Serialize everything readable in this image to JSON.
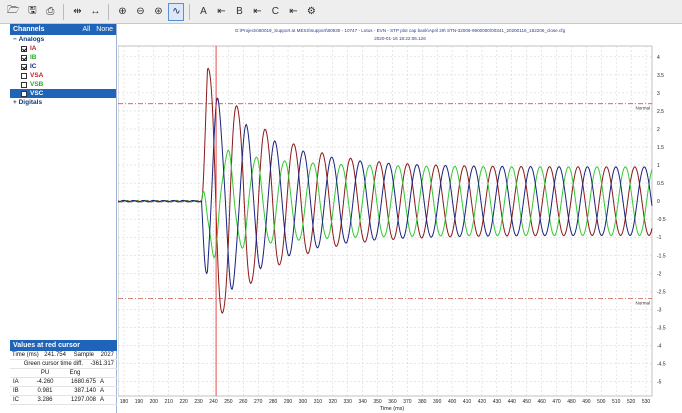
{
  "toolbar": {
    "buttons": [
      {
        "name": "open-icon",
        "glyph": "🗁"
      },
      {
        "name": "save-icon",
        "glyph": "🖫"
      },
      {
        "name": "print-icon",
        "glyph": "⎙"
      },
      {
        "name": "cursor-icon",
        "glyph": "⇹"
      },
      {
        "name": "arrows-icon",
        "glyph": "↔"
      },
      {
        "name": "zoom-in-icon",
        "glyph": "⊕"
      },
      {
        "name": "zoom-out-icon",
        "glyph": "⊖"
      },
      {
        "name": "zoom-fit-icon",
        "glyph": "⊛"
      },
      {
        "name": "waveform-icon",
        "glyph": "∿"
      }
    ],
    "cursor_a": "A",
    "cursor_b": "B",
    "cursor_c": "C"
  },
  "sidebar": {
    "channels_title": "Channels",
    "all_label": "All",
    "none_label": "None",
    "analogs_label": "Analogs",
    "channels": [
      {
        "label": "IA",
        "color": "#c81e1e",
        "checked": true
      },
      {
        "label": "IB",
        "color": "#2aa82a",
        "checked": true
      },
      {
        "label": "IC",
        "color": "#1a2f8c",
        "checked": true
      },
      {
        "label": "VSA",
        "color": "#c81e1e",
        "checked": false
      },
      {
        "label": "VSB",
        "color": "#2aa82a",
        "checked": false
      },
      {
        "label": "VSC",
        "color": "#ffffff",
        "checked": false
      }
    ],
    "digitals_label": "Digitals"
  },
  "values": {
    "title": "Values at red cursor",
    "time_label": "Time (ms)",
    "time_value": "241.754",
    "sample_label": "Sample",
    "sample_value": "2027",
    "diff_label": "Green cursor time diff.",
    "diff_value": "-361.317",
    "col_pu": "PU",
    "col_eng": "Eng",
    "rows": [
      {
        "name": "IA",
        "pu": "-4.260",
        "eng": "1680.675",
        "unit": "A"
      },
      {
        "name": "IB",
        "pu": "0.981",
        "eng": "387.140",
        "unit": "A"
      },
      {
        "name": "IC",
        "pu": "3.286",
        "eng": "1297.008",
        "unit": "A"
      }
    ]
  },
  "chart_data": {
    "type": "line",
    "title": "G:\\Projects\\80019_Support at MESS\\support\\80930 - 10747 - Lotus - EVN - STP plot cap bank\\April 29\\ STN-32006-9900000\\00341_20200116_182206_close.cfg",
    "subtitle": "2020-01-16 18:22:06.126",
    "xlabel": "Time (ms)",
    "ylabel": "",
    "xlim": [
      176,
      534
    ],
    "ylim": [
      -5.4,
      4.3
    ],
    "x_ticks": [
      180,
      190,
      200,
      210,
      220,
      230,
      240,
      250,
      260,
      270,
      280,
      290,
      300,
      310,
      320,
      330,
      340,
      350,
      360,
      370,
      380,
      390,
      400,
      410,
      420,
      430,
      440,
      450,
      460,
      470,
      480,
      490,
      500,
      510,
      520,
      530
    ],
    "y_ticks": [
      4,
      3.5,
      3,
      2.5,
      2,
      1.5,
      1,
      0.5,
      0,
      -0.5,
      -1,
      -1.5,
      -2,
      -2.5,
      -3,
      -3.5,
      -4,
      -4.5,
      -5
    ],
    "grid": true,
    "thresholds": [
      {
        "value": 2.7,
        "label": "Normal",
        "color": "#c0392b"
      },
      {
        "value": -2.7,
        "label": "Normal",
        "color": "#c0392b"
      }
    ],
    "red_cursor_x": 241.754,
    "event_start_x": 232,
    "frequency_hz": 50,
    "series": [
      {
        "name": "IA",
        "color": "#8b1a1a",
        "phase_deg": 0,
        "peak": 4.26,
        "steady": 0.95,
        "decay_ms": 38
      },
      {
        "name": "IB",
        "color": "#33c933",
        "phase_deg": 120,
        "peak": 1.55,
        "steady": 0.95,
        "decay_ms": 45
      },
      {
        "name": "IC",
        "color": "#1a237e",
        "phase_deg": 240,
        "peak": 3.29,
        "steady": 0.95,
        "decay_ms": 40
      }
    ]
  }
}
